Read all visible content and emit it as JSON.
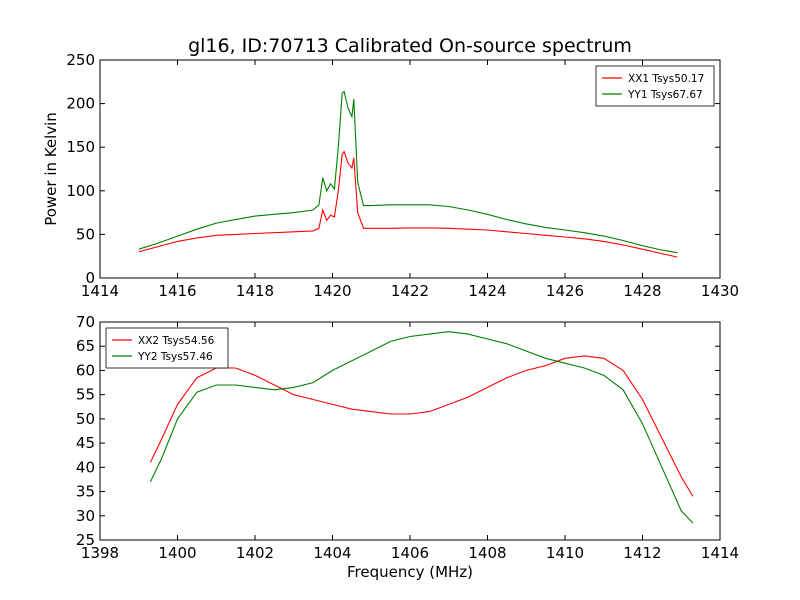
{
  "chart_data": [
    {
      "type": "line",
      "title": "gl16, ID:70713 Calibrated On-source spectrum",
      "xlabel": "",
      "ylabel": "Power in Kelvin",
      "xlim": [
        1414,
        1430
      ],
      "ylim": [
        0,
        250
      ],
      "xticks": [
        "1414",
        "1416",
        "1418",
        "1420",
        "1422",
        "1424",
        "1426",
        "1428",
        "1430"
      ],
      "yticks": [
        "0",
        "50",
        "100",
        "150",
        "200",
        "250"
      ],
      "grid": false,
      "legend_position": "top-right",
      "series": [
        {
          "name": "XX1 Tsys50.17",
          "color": "#ff0000",
          "points": [
            [
              1415.0,
              30
            ],
            [
              1415.5,
              36
            ],
            [
              1416.0,
              42
            ],
            [
              1416.5,
              46
            ],
            [
              1417.0,
              49
            ],
            [
              1417.5,
              50
            ],
            [
              1418.0,
              51
            ],
            [
              1418.5,
              52
            ],
            [
              1419.0,
              53
            ],
            [
              1419.5,
              54
            ],
            [
              1419.65,
              57
            ],
            [
              1419.75,
              78
            ],
            [
              1419.85,
              66
            ],
            [
              1419.95,
              72
            ],
            [
              1420.05,
              70
            ],
            [
              1420.15,
              100
            ],
            [
              1420.25,
              142
            ],
            [
              1420.3,
              145
            ],
            [
              1420.4,
              132
            ],
            [
              1420.5,
              126
            ],
            [
              1420.55,
              138
            ],
            [
              1420.65,
              75
            ],
            [
              1420.8,
              57
            ],
            [
              1421.0,
              57
            ],
            [
              1421.5,
              57
            ],
            [
              1422.0,
              57.5
            ],
            [
              1422.5,
              57.5
            ],
            [
              1423.0,
              57
            ],
            [
              1423.5,
              56
            ],
            [
              1424.0,
              55
            ],
            [
              1424.5,
              53
            ],
            [
              1425.0,
              51
            ],
            [
              1425.5,
              49
            ],
            [
              1426.0,
              47
            ],
            [
              1426.5,
              45
            ],
            [
              1427.0,
              42
            ],
            [
              1427.5,
              38
            ],
            [
              1428.0,
              33
            ],
            [
              1428.5,
              28
            ],
            [
              1428.9,
              24
            ]
          ]
        },
        {
          "name": "YY1 Tsys67.67",
          "color": "#008000",
          "points": [
            [
              1415.0,
              33
            ],
            [
              1415.5,
              40
            ],
            [
              1416.0,
              48
            ],
            [
              1416.5,
              56
            ],
            [
              1417.0,
              63
            ],
            [
              1417.5,
              67
            ],
            [
              1418.0,
              71
            ],
            [
              1418.5,
              73
            ],
            [
              1419.0,
              75
            ],
            [
              1419.5,
              78
            ],
            [
              1419.65,
              84
            ],
            [
              1419.75,
              115
            ],
            [
              1419.85,
              100
            ],
            [
              1419.95,
              108
            ],
            [
              1420.05,
              102
            ],
            [
              1420.15,
              150
            ],
            [
              1420.25,
              212
            ],
            [
              1420.3,
              214
            ],
            [
              1420.4,
              195
            ],
            [
              1420.5,
              185
            ],
            [
              1420.55,
              205
            ],
            [
              1420.65,
              110
            ],
            [
              1420.8,
              83
            ],
            [
              1421.0,
              83
            ],
            [
              1421.5,
              84
            ],
            [
              1422.0,
              84
            ],
            [
              1422.5,
              84
            ],
            [
              1423.0,
              82
            ],
            [
              1423.5,
              78
            ],
            [
              1424.0,
              73
            ],
            [
              1424.5,
              67
            ],
            [
              1425.0,
              62
            ],
            [
              1425.5,
              58
            ],
            [
              1426.0,
              55
            ],
            [
              1426.5,
              52
            ],
            [
              1427.0,
              48
            ],
            [
              1427.5,
              43
            ],
            [
              1428.0,
              37
            ],
            [
              1428.5,
              32
            ],
            [
              1428.9,
              29
            ]
          ]
        }
      ]
    },
    {
      "type": "line",
      "title": "",
      "xlabel": "Frequency (MHz)",
      "ylabel": "",
      "xlim": [
        1398,
        1414
      ],
      "ylim": [
        25,
        70
      ],
      "xticks": [
        "1398",
        "1400",
        "1402",
        "1404",
        "1406",
        "1408",
        "1410",
        "1412",
        "1414"
      ],
      "yticks": [
        "25",
        "30",
        "35",
        "40",
        "45",
        "50",
        "55",
        "60",
        "65",
        "70"
      ],
      "grid": false,
      "legend_position": "top-left",
      "series": [
        {
          "name": "XX2 Tsys54.56",
          "color": "#ff0000",
          "points": [
            [
              1399.3,
              41
            ],
            [
              1399.6,
              46
            ],
            [
              1400.0,
              53
            ],
            [
              1400.5,
              58.5
            ],
            [
              1401.0,
              60.5
            ],
            [
              1401.5,
              60.5
            ],
            [
              1402.0,
              59
            ],
            [
              1402.5,
              57
            ],
            [
              1403.0,
              55
            ],
            [
              1403.5,
              54
            ],
            [
              1404.0,
              53
            ],
            [
              1404.5,
              52
            ],
            [
              1405.0,
              51.5
            ],
            [
              1405.5,
              51
            ],
            [
              1406.0,
              51
            ],
            [
              1406.5,
              51.5
            ],
            [
              1407.0,
              53
            ],
            [
              1407.5,
              54.5
            ],
            [
              1408.0,
              56.5
            ],
            [
              1408.5,
              58.5
            ],
            [
              1409.0,
              60
            ],
            [
              1409.5,
              61
            ],
            [
              1410.0,
              62.5
            ],
            [
              1410.5,
              63
            ],
            [
              1411.0,
              62.5
            ],
            [
              1411.5,
              60
            ],
            [
              1412.0,
              54
            ],
            [
              1412.5,
              46
            ],
            [
              1413.0,
              38
            ],
            [
              1413.3,
              34
            ]
          ]
        },
        {
          "name": "YY2 Tsys57.46",
          "color": "#008000",
          "points": [
            [
              1399.3,
              37
            ],
            [
              1399.6,
              42
            ],
            [
              1400.0,
              50
            ],
            [
              1400.5,
              55.5
            ],
            [
              1401.0,
              57
            ],
            [
              1401.5,
              57
            ],
            [
              1402.0,
              56.5
            ],
            [
              1402.5,
              56
            ],
            [
              1403.0,
              56.5
            ],
            [
              1403.5,
              57.5
            ],
            [
              1404.0,
              60
            ],
            [
              1404.5,
              62
            ],
            [
              1405.0,
              64
            ],
            [
              1405.5,
              66
            ],
            [
              1406.0,
              67
            ],
            [
              1406.5,
              67.5
            ],
            [
              1407.0,
              68
            ],
            [
              1407.5,
              67.5
            ],
            [
              1408.0,
              66.5
            ],
            [
              1408.5,
              65.5
            ],
            [
              1409.0,
              64
            ],
            [
              1409.5,
              62.5
            ],
            [
              1410.0,
              61.5
            ],
            [
              1410.5,
              60.5
            ],
            [
              1411.0,
              59
            ],
            [
              1411.5,
              56
            ],
            [
              1412.0,
              49
            ],
            [
              1412.5,
              40
            ],
            [
              1413.0,
              31
            ],
            [
              1413.3,
              28.5
            ]
          ]
        }
      ]
    }
  ]
}
